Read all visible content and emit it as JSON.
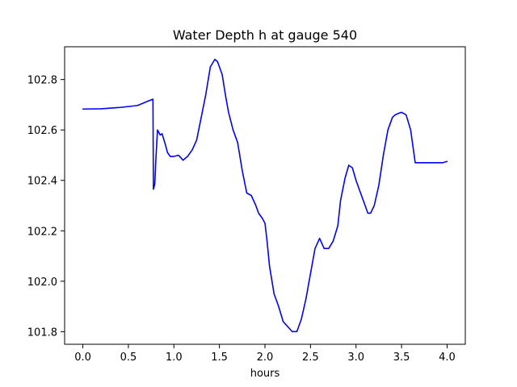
{
  "chart_data": {
    "type": "line",
    "title": "Water Depth h at gauge 540",
    "xlabel": "hours",
    "ylabel": "",
    "xlim": [
      -0.2,
      4.2
    ],
    "ylim": [
      101.75,
      102.93
    ],
    "xticks": [
      0.0,
      0.5,
      1.0,
      1.5,
      2.0,
      2.5,
      3.0,
      3.5,
      4.0
    ],
    "xtick_labels": [
      "0.0",
      "0.5",
      "1.0",
      "1.5",
      "2.0",
      "2.5",
      "3.0",
      "3.5",
      "4.0"
    ],
    "yticks": [
      101.8,
      102.0,
      102.2,
      102.4,
      102.6,
      102.8
    ],
    "ytick_labels": [
      "101.8",
      "102.0",
      "102.2",
      "102.4",
      "102.6",
      "102.8"
    ],
    "grid": false,
    "series": [
      {
        "color": "#0000ff",
        "x": [
          0.0,
          0.2,
          0.4,
          0.6,
          0.7,
          0.77,
          0.775,
          0.79,
          0.8,
          0.82,
          0.85,
          0.87,
          0.9,
          0.93,
          0.96,
          1.0,
          1.05,
          1.1,
          1.15,
          1.2,
          1.25,
          1.3,
          1.35,
          1.4,
          1.45,
          1.48,
          1.5,
          1.53,
          1.57,
          1.6,
          1.65,
          1.7,
          1.75,
          1.8,
          1.85,
          1.9,
          1.93,
          1.97,
          2.0,
          2.02,
          2.05,
          2.1,
          2.15,
          2.2,
          2.25,
          2.3,
          2.35,
          2.4,
          2.45,
          2.5,
          2.55,
          2.6,
          2.65,
          2.7,
          2.75,
          2.8,
          2.83,
          2.88,
          2.92,
          2.96,
          3.0,
          3.05,
          3.1,
          3.13,
          3.16,
          3.2,
          3.25,
          3.3,
          3.35,
          3.4,
          3.43,
          3.46,
          3.5,
          3.55,
          3.6,
          3.65,
          3.7,
          3.75,
          3.8,
          3.85,
          3.9,
          3.95,
          4.0
        ],
        "y": [
          102.683,
          102.684,
          102.689,
          102.697,
          102.712,
          102.722,
          102.365,
          102.385,
          102.47,
          102.6,
          102.58,
          102.585,
          102.55,
          102.51,
          102.495,
          102.495,
          102.5,
          102.48,
          102.495,
          102.52,
          102.56,
          102.65,
          102.74,
          102.85,
          102.88,
          102.87,
          102.85,
          102.82,
          102.73,
          102.67,
          102.6,
          102.55,
          102.44,
          102.35,
          102.34,
          102.3,
          102.27,
          102.25,
          102.23,
          102.17,
          102.06,
          101.95,
          101.9,
          101.84,
          101.82,
          101.8,
          101.8,
          101.85,
          101.93,
          102.03,
          102.13,
          102.17,
          102.13,
          102.13,
          102.16,
          102.22,
          102.32,
          102.41,
          102.46,
          102.45,
          102.4,
          102.35,
          102.3,
          102.27,
          102.27,
          102.3,
          102.38,
          102.5,
          102.6,
          102.65,
          102.66,
          102.665,
          102.67,
          102.66,
          102.6,
          102.47,
          102.47,
          102.47,
          102.47,
          102.47,
          102.47,
          102.47,
          102.475
        ]
      }
    ]
  }
}
